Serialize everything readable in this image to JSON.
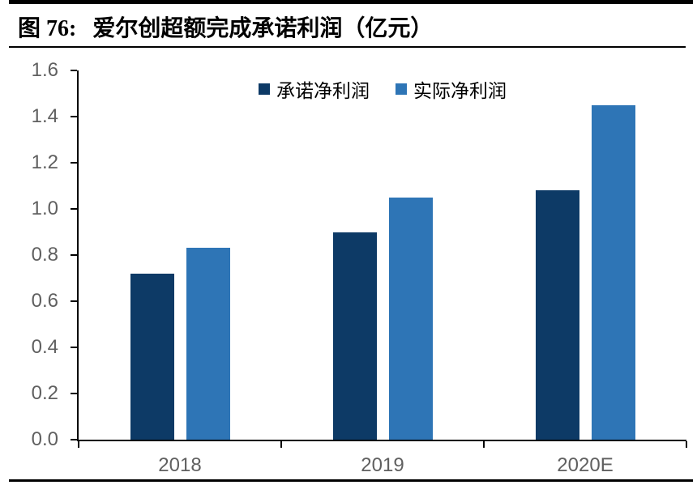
{
  "figure": {
    "label": "图 76:",
    "title": "爱尔创超额完成承诺利润（亿元）"
  },
  "chart_data": {
    "type": "bar",
    "title": "爱尔创超额完成承诺利润（亿元）",
    "categories": [
      "2018",
      "2019",
      "2020E"
    ],
    "series": [
      {
        "name": "承诺净利润",
        "color": "#0d3a66",
        "values": [
          0.72,
          0.9,
          1.08
        ]
      },
      {
        "name": "实际净利润",
        "color": "#2e75b6",
        "values": [
          0.83,
          1.05,
          1.45
        ]
      }
    ],
    "ylim": [
      0,
      1.6
    ],
    "ytick_step": 0.2,
    "yticks": [
      "1.6",
      "1.4",
      "1.2",
      "1.0",
      "0.8",
      "0.6",
      "0.4",
      "0.2",
      "0.0"
    ],
    "xlabel": "",
    "ylabel": "",
    "grid": false,
    "legend_position": "top-center",
    "axis_color": "#000000",
    "tick_label_color": "#606060"
  }
}
